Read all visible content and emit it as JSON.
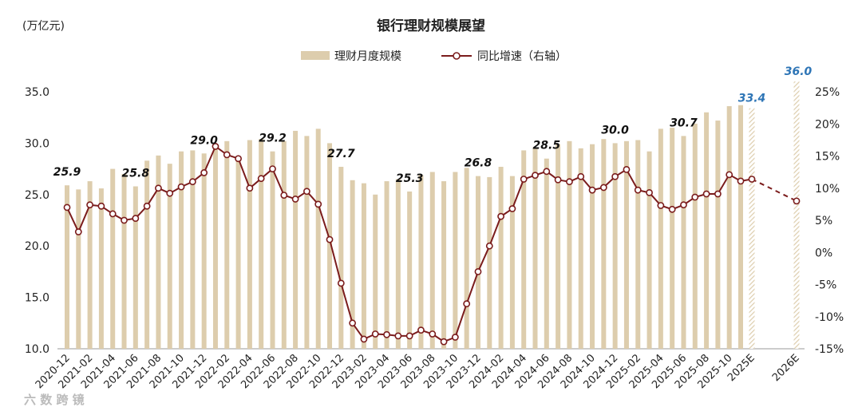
{
  "unit_label": "(万亿元)",
  "watermark": "六 数 跨 镜",
  "chart_data": {
    "type": "bar+line",
    "title": "银行理财规模展望",
    "ylabel_left": "(万亿元)",
    "ylim_left": [
      10.0,
      35.0
    ],
    "yticks_left": [
      "10.0",
      "15.0",
      "20.0",
      "25.0",
      "30.0",
      "35.0"
    ],
    "ylim_right": [
      -15,
      25
    ],
    "yticks_right": [
      "-15%",
      "-10%",
      "-5%",
      "0%",
      "5%",
      "10%",
      "15%",
      "20%",
      "25%"
    ],
    "legend": {
      "bar": "理财月度规模",
      "line": "同比增速（右轴）",
      "position": "top-center"
    },
    "x_tick_labels": [
      "2020-12",
      "2021-02",
      "2021-04",
      "2021-06",
      "2021-08",
      "2021-10",
      "2021-12",
      "2022-02",
      "2022-04",
      "2022-06",
      "2022-08",
      "2022-10",
      "2022-12",
      "2023-02",
      "2023-04",
      "2023-06",
      "2023-08",
      "2023-10",
      "2023-12",
      "2024-02",
      "2024-04",
      "2024-06",
      "2024-08",
      "2024-10",
      "2024-12",
      "2025-02",
      "2025-04",
      "2025-06",
      "2025-08",
      "2025-10",
      "2025E",
      "2026E"
    ],
    "monthly": {
      "categories": [
        "2020-12",
        "2021-01",
        "2021-02",
        "2021-03",
        "2021-04",
        "2021-05",
        "2021-06",
        "2021-07",
        "2021-08",
        "2021-09",
        "2021-10",
        "2021-11",
        "2021-12",
        "2022-01",
        "2022-02",
        "2022-03",
        "2022-04",
        "2022-05",
        "2022-06",
        "2022-07",
        "2022-08",
        "2022-09",
        "2022-10",
        "2022-11",
        "2022-12",
        "2023-01",
        "2023-02",
        "2023-03",
        "2023-04",
        "2023-05",
        "2023-06",
        "2023-07",
        "2023-08",
        "2023-09",
        "2023-10",
        "2023-11",
        "2023-12",
        "2024-01",
        "2024-02",
        "2024-03",
        "2024-04",
        "2024-05",
        "2024-06",
        "2024-07",
        "2024-08",
        "2024-09",
        "2024-10",
        "2024-11",
        "2024-12",
        "2025-01",
        "2025-02",
        "2025-03",
        "2025-04",
        "2025-05",
        "2025-06",
        "2025-07",
        "2025-08",
        "2025-09",
        "2025-10",
        "2025-11"
      ],
      "scale_tn": [
        25.9,
        25.5,
        26.3,
        25.6,
        27.5,
        27.0,
        25.8,
        28.3,
        28.8,
        28.0,
        29.2,
        29.3,
        29.0,
        29.8,
        30.2,
        28.7,
        30.3,
        30.4,
        29.2,
        30.2,
        31.2,
        30.7,
        31.4,
        30.0,
        27.7,
        26.4,
        26.1,
        25.0,
        26.3,
        26.5,
        25.3,
        26.9,
        27.2,
        26.3,
        27.2,
        27.6,
        26.8,
        26.7,
        27.7,
        26.8,
        29.3,
        29.6,
        28.5,
        29.9,
        30.2,
        29.5,
        29.9,
        30.4,
        30.0,
        30.2,
        30.3,
        29.2,
        31.4,
        31.5,
        30.7,
        31.9,
        33.0,
        32.2,
        33.6,
        33.7
      ],
      "yoy_pct": [
        7.0,
        3.2,
        7.4,
        7.2,
        6.0,
        5.0,
        5.3,
        7.2,
        10.0,
        9.2,
        10.2,
        11.0,
        12.4,
        16.5,
        15.2,
        14.6,
        10.0,
        11.5,
        13.0,
        8.9,
        8.3,
        9.5,
        7.5,
        2.0,
        -4.8,
        -11.0,
        -13.5,
        -12.7,
        -12.8,
        -13.0,
        -13.0,
        -12.1,
        -12.7,
        -13.9,
        -13.2,
        -8.0,
        -3.0,
        1.0,
        5.6,
        6.8,
        11.4,
        12.0,
        12.6,
        11.3,
        11.0,
        11.8,
        9.7,
        10.1,
        11.8,
        12.9,
        9.7,
        9.3,
        7.3,
        6.7,
        7.4,
        8.6,
        9.1,
        9.1,
        12.1,
        11.1
      ],
      "data_labels": {
        "2020-12": "25.9",
        "2021-06": "25.8",
        "2021-12": "29.0",
        "2022-06": "29.2",
        "2022-12": "27.7",
        "2023-06": "25.3",
        "2023-12": "26.8",
        "2024-06": "28.5",
        "2024-12": "30.0",
        "2025-06": "30.7"
      }
    },
    "forecast": {
      "categories": [
        "2025E",
        "2026E"
      ],
      "scale_tn": [
        33.4,
        36.0
      ],
      "yoy_pct": [
        11.4,
        8.0
      ],
      "data_labels": [
        "33.4",
        "36.0"
      ],
      "label_color": "#2E75B6"
    },
    "colors": {
      "bar": "#DDCDAD",
      "line": "#7B1C1C",
      "marker_fill": "#ffffff",
      "forecast_label": "#2E75B6"
    },
    "grid": false
  }
}
